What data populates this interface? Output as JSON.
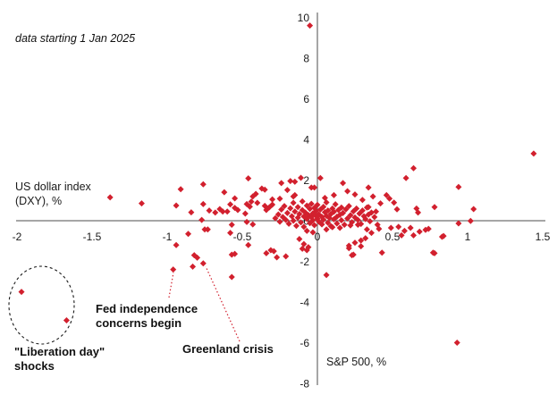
{
  "chart_data": {
    "type": "scatter",
    "note": "data starting 1 Jan 2025",
    "xlabel": "S&P 500, %",
    "ylabel": "US dollar index (DXY), %",
    "ylabel_lines": [
      "US dollar index",
      "(DXY), %"
    ],
    "xlim": [
      -2,
      1.5
    ],
    "ylim": [
      -8,
      10
    ],
    "x_ticks": [
      -2,
      -1.5,
      -1,
      -0.5,
      0,
      0.5,
      1,
      1.5
    ],
    "y_ticks": [
      10,
      8,
      6,
      4,
      2,
      0,
      -2,
      -4,
      -6,
      -8
    ],
    "grid": false,
    "legend": "none",
    "marker": "diamond",
    "colors": {
      "marker": "#d2202e",
      "axis": "#4d4d4d",
      "text": "#1a1a1a",
      "leader_line": "#d2202e",
      "ellipse": "#1a1a1a"
    },
    "annotations": {
      "fed": {
        "line1": "Fed independence",
        "line2": "concerns begin",
        "target_point": [
          -0.96,
          -2.4
        ]
      },
      "greenland": {
        "label": "Greenland crisis",
        "target_point": [
          -0.76,
          -2.1
        ]
      },
      "liberation": {
        "line1": "\"Liberation day\"",
        "line2": "shocks",
        "circled_points": [
          [
            -1.97,
            -3.5
          ],
          [
            -1.67,
            -4.9
          ]
        ]
      }
    },
    "points": [
      [
        -0.05,
        9.6
      ],
      [
        1.44,
        3.3
      ],
      [
        0.93,
        -6.0
      ],
      [
        -1.97,
        -3.5
      ],
      [
        -1.67,
        -4.9
      ],
      [
        -0.96,
        -2.4
      ],
      [
        -0.76,
        -2.1
      ],
      [
        -1.38,
        1.15
      ],
      [
        -1.17,
        0.85
      ],
      [
        -0.46,
        2.08
      ],
      [
        0.64,
        2.58
      ],
      [
        0.59,
        2.1
      ],
      [
        0.02,
        2.1
      ],
      [
        -0.11,
        2.11
      ],
      [
        -0.18,
        1.95
      ],
      [
        -0.15,
        1.92
      ],
      [
        -0.24,
        1.85
      ],
      [
        0.17,
        1.85
      ],
      [
        0.94,
        1.66
      ],
      [
        -0.76,
        1.79
      ],
      [
        -0.91,
        1.55
      ],
      [
        -0.37,
        1.58
      ],
      [
        -0.35,
        1.53
      ],
      [
        0.34,
        1.63
      ],
      [
        -0.04,
        1.63
      ],
      [
        -0.02,
        1.63
      ],
      [
        -0.2,
        1.51
      ],
      [
        -0.55,
        1.1
      ],
      [
        -0.43,
        1.19
      ],
      [
        -0.41,
        1.32
      ],
      [
        -0.16,
        1.19
      ],
      [
        -0.15,
        1.26
      ],
      [
        0.11,
        1.26
      ],
      [
        0.25,
        1.29
      ],
      [
        0.37,
        1.19
      ],
      [
        0.46,
        1.26
      ],
      [
        0.48,
        1.09
      ],
      [
        -0.3,
        1.05
      ],
      [
        0.05,
        1.12
      ],
      [
        0.2,
        1.45
      ],
      [
        -0.62,
        1.4
      ],
      [
        -0.25,
        1.08
      ],
      [
        0.3,
        1.02
      ],
      [
        -0.72,
        0.5
      ],
      [
        -0.68,
        0.4
      ],
      [
        -0.65,
        0.57
      ],
      [
        -0.63,
        0.45
      ],
      [
        -0.6,
        0.45
      ],
      [
        -0.58,
        0.8
      ],
      [
        -0.55,
        0.63
      ],
      [
        -0.53,
        0.53
      ],
      [
        -0.48,
        0.35
      ],
      [
        -0.47,
        0.82
      ],
      [
        -0.45,
        0.69
      ],
      [
        -0.44,
        0.94
      ],
      [
        -0.4,
        0.88
      ],
      [
        -0.35,
        0.73
      ],
      [
        -0.34,
        0.53
      ],
      [
        -0.32,
        0.66
      ],
      [
        -0.3,
        0.79
      ],
      [
        -0.94,
        0.75
      ],
      [
        -0.84,
        0.41
      ],
      [
        -0.76,
        0.82
      ],
      [
        0.42,
        0.85
      ],
      [
        0.51,
        0.89
      ],
      [
        0.53,
        0.56
      ],
      [
        0.34,
        0.67
      ],
      [
        0.39,
        0.45
      ],
      [
        0.66,
        0.6
      ],
      [
        0.67,
        0.4
      ],
      [
        0.78,
        0.67
      ],
      [
        1.04,
        0.57
      ],
      [
        -0.73,
        -0.43
      ],
      [
        -0.57,
        -0.2
      ],
      [
        -0.58,
        -0.6
      ],
      [
        -0.47,
        -0.06
      ],
      [
        -0.43,
        -0.18
      ],
      [
        -0.86,
        -0.65
      ],
      [
        -0.75,
        -0.43
      ],
      [
        -0.77,
        0.04
      ],
      [
        -0.07,
        -0.5
      ],
      [
        -0.03,
        -0.57
      ],
      [
        0.06,
        -0.43
      ],
      [
        0.1,
        -0.32
      ],
      [
        0.15,
        -0.35
      ],
      [
        0.22,
        -0.23
      ],
      [
        0.27,
        -0.2
      ],
      [
        0.33,
        -0.43
      ],
      [
        0.36,
        -0.6
      ],
      [
        0.4,
        -0.2
      ],
      [
        0.41,
        -0.4
      ],
      [
        0.49,
        -0.35
      ],
      [
        0.54,
        -0.3
      ],
      [
        0.58,
        -0.5
      ],
      [
        0.62,
        -0.35
      ],
      [
        0.56,
        -0.72
      ],
      [
        0.64,
        -0.72
      ],
      [
        0.68,
        -0.54
      ],
      [
        0.72,
        -0.45
      ],
      [
        0.74,
        -0.4
      ],
      [
        0.84,
        -0.75
      ],
      [
        0.83,
        -0.79
      ],
      [
        0.94,
        -0.13
      ],
      [
        1.02,
        -0.01
      ],
      [
        -0.46,
        -1.2
      ],
      [
        -0.57,
        -1.67
      ],
      [
        -0.34,
        -1.6
      ],
      [
        -0.29,
        -1.5
      ],
      [
        -0.27,
        -1.8
      ],
      [
        -0.21,
        -1.75
      ],
      [
        -0.94,
        -1.2
      ],
      [
        -0.12,
        -0.9
      ],
      [
        -0.09,
        -1.15
      ],
      [
        -0.06,
        -1.3
      ],
      [
        0.21,
        -1.23
      ],
      [
        0.25,
        -1.08
      ],
      [
        0.29,
        -0.97
      ],
      [
        0.32,
        -0.86
      ],
      [
        0.24,
        -1.67
      ],
      [
        0.43,
        -1.57
      ],
      [
        0.77,
        -1.57
      ],
      [
        0.78,
        -1.6
      ],
      [
        -0.31,
        -1.45
      ],
      [
        -0.1,
        -1.38
      ],
      [
        -0.07,
        -1.45
      ],
      [
        0.21,
        -1.35
      ],
      [
        0.23,
        -1.7
      ],
      [
        0.29,
        -1.26
      ],
      [
        -0.82,
        -1.7
      ],
      [
        -0.8,
        -1.82
      ],
      [
        -0.55,
        -1.63
      ],
      [
        -0.83,
        -2.26
      ],
      [
        -0.57,
        -2.77
      ],
      [
        0.06,
        -2.67
      ],
      [
        -0.28,
        0.12
      ],
      [
        -0.26,
        0.31
      ],
      [
        -0.25,
        -0.05
      ],
      [
        -0.24,
        0.55
      ],
      [
        -0.23,
        0.18
      ],
      [
        -0.22,
        0.72
      ],
      [
        -0.21,
        0.04
      ],
      [
        -0.2,
        0.38
      ],
      [
        -0.19,
        -0.15
      ],
      [
        -0.18,
        0.61
      ],
      [
        -0.17,
        0.22
      ],
      [
        -0.16,
        0.88
      ],
      [
        -0.16,
        0.0
      ],
      [
        -0.15,
        0.45
      ],
      [
        -0.14,
        -0.25
      ],
      [
        -0.13,
        0.67
      ],
      [
        -0.13,
        0.15
      ],
      [
        -0.12,
        0.33
      ],
      [
        -0.11,
        -0.08
      ],
      [
        -0.1,
        0.52
      ],
      [
        -0.1,
        0.95
      ],
      [
        -0.09,
        0.21
      ],
      [
        -0.09,
        -0.3
      ],
      [
        -0.08,
        0.4
      ],
      [
        -0.07,
        0.09
      ],
      [
        -0.07,
        0.74
      ],
      [
        -0.06,
        0.28
      ],
      [
        -0.05,
        -0.12
      ],
      [
        -0.05,
        0.58
      ],
      [
        -0.04,
        0.17
      ],
      [
        -0.04,
        0.83
      ],
      [
        -0.03,
        0.02
      ],
      [
        -0.03,
        0.36
      ],
      [
        -0.02,
        -0.22
      ],
      [
        -0.02,
        0.63
      ],
      [
        -0.01,
        0.25
      ],
      [
        -0.01,
        0.47
      ],
      [
        0.0,
        0.1
      ],
      [
        0.0,
        0.78
      ],
      [
        0.01,
        -0.05
      ],
      [
        0.01,
        0.31
      ],
      [
        0.02,
        0.55
      ],
      [
        0.03,
        0.19
      ],
      [
        0.03,
        -0.18
      ],
      [
        0.04,
        0.68
      ],
      [
        0.04,
        0.05
      ],
      [
        0.05,
        0.42
      ],
      [
        0.06,
        0.24
      ],
      [
        0.06,
        0.9
      ],
      [
        0.07,
        -0.1
      ],
      [
        0.07,
        0.5
      ],
      [
        0.08,
        0.14
      ],
      [
        0.09,
        0.33
      ],
      [
        0.09,
        -0.27
      ],
      [
        0.1,
        0.6
      ],
      [
        0.11,
        0.07
      ],
      [
        0.11,
        0.44
      ],
      [
        0.12,
        0.81
      ],
      [
        0.13,
        0.2
      ],
      [
        0.13,
        -0.14
      ],
      [
        0.14,
        0.53
      ],
      [
        0.15,
        0.29
      ],
      [
        0.16,
        0.02
      ],
      [
        0.16,
        0.65
      ],
      [
        0.17,
        0.38
      ],
      [
        0.18,
        -0.2
      ],
      [
        0.19,
        0.56
      ],
      [
        0.2,
        0.11
      ],
      [
        0.21,
        0.72
      ],
      [
        0.22,
        0.27
      ],
      [
        0.23,
        -0.07
      ],
      [
        0.24,
        0.46
      ],
      [
        0.25,
        0.16
      ],
      [
        0.26,
        0.6
      ],
      [
        0.27,
        0.04
      ],
      [
        0.28,
        0.35
      ],
      [
        0.29,
        -0.16
      ],
      [
        0.3,
        0.5
      ],
      [
        0.31,
        0.22
      ],
      [
        0.32,
        0.08
      ],
      [
        0.33,
        0.65
      ],
      [
        0.34,
        0.3
      ],
      [
        0.35,
        -0.03
      ],
      [
        0.36,
        0.4
      ],
      [
        0.38,
        0.18
      ]
    ]
  }
}
